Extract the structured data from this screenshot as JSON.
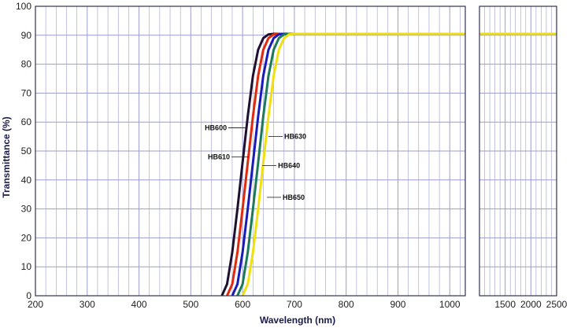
{
  "chart_data": {
    "type": "line",
    "xlabel": "Wavelength (nm)",
    "ylabel": "Transmittance (%)",
    "ylim": [
      0,
      100
    ],
    "y_ticks": [
      "0",
      "10",
      "20",
      "30",
      "40",
      "50",
      "60",
      "70",
      "80",
      "90",
      "100"
    ],
    "x_ticks_main": [
      "200",
      "300",
      "400",
      "500",
      "600",
      "700",
      "800",
      "900",
      "1000"
    ],
    "x_ticks_extended": [
      "1500",
      "2000",
      "2500"
    ],
    "x_axis_note": "broken axis: 200-1000 nm then 1000-2500 nm",
    "xlim_main": [
      200,
      1030
    ],
    "xlim_extended": [
      1000,
      2500
    ],
    "grid": true,
    "colors": {
      "grid": "#9c9cd0",
      "axis": "#1a1a4a",
      "frame": "#333355"
    },
    "series": [
      {
        "name": "HB600",
        "color": "#1e1030",
        "x": [
          560,
          570,
          580,
          590,
          600,
          610,
          620,
          630,
          640,
          650,
          660,
          680,
          700,
          1000,
          2500
        ],
        "y": [
          0,
          4,
          15,
          30,
          46,
          62,
          76,
          85,
          89,
          90.3,
          90.5,
          90.5,
          90.5,
          90.5,
          90.5
        ]
      },
      {
        "name": "HB610",
        "color": "#e02a10",
        "x": [
          570,
          580,
          590,
          600,
          610,
          620,
          630,
          640,
          650,
          660,
          670,
          690,
          720,
          1000,
          2500
        ],
        "y": [
          0,
          4,
          15,
          30,
          46,
          62,
          76,
          85,
          89,
          90.3,
          90.5,
          90.5,
          90.5,
          90.5,
          90.5
        ]
      },
      {
        "name": "HB630",
        "color": "#1a1ab8",
        "x": [
          580,
          590,
          600,
          610,
          620,
          630,
          640,
          650,
          660,
          670,
          680,
          700,
          730,
          1000,
          2500
        ],
        "y": [
          0,
          4,
          15,
          30,
          46,
          62,
          76,
          85,
          89,
          90.3,
          90.5,
          90.5,
          90.5,
          90.5,
          90.5
        ]
      },
      {
        "name": "HB640",
        "color": "#1a7a5a",
        "x": [
          590,
          600,
          610,
          620,
          630,
          640,
          650,
          660,
          670,
          680,
          690,
          710,
          740,
          1000,
          2500
        ],
        "y": [
          0,
          4,
          15,
          30,
          46,
          62,
          76,
          85,
          89,
          90.3,
          90.5,
          90.5,
          90.5,
          90.5,
          90.5
        ]
      },
      {
        "name": "HB650",
        "color": "#f0e010",
        "x": [
          600,
          610,
          620,
          630,
          640,
          650,
          660,
          670,
          680,
          690,
          700,
          720,
          750,
          1000,
          2500
        ],
        "y": [
          0,
          4,
          15,
          30,
          46,
          62,
          76,
          85,
          89,
          90.3,
          90.5,
          90.5,
          90.5,
          90.5,
          90.5
        ]
      }
    ],
    "annotations": [
      {
        "text": "HB600",
        "series": "HB600",
        "x": 606,
        "y": 58,
        "side": "left"
      },
      {
        "text": "HB610",
        "series": "HB610",
        "x": 612,
        "y": 48,
        "side": "left"
      },
      {
        "text": "HB630",
        "series": "HB630",
        "x": 650,
        "y": 55,
        "side": "right"
      },
      {
        "text": "HB640",
        "series": "HB640",
        "x": 638,
        "y": 45,
        "side": "right"
      },
      {
        "text": "HB650",
        "series": "HB650",
        "x": 647,
        "y": 34,
        "side": "right"
      }
    ]
  }
}
